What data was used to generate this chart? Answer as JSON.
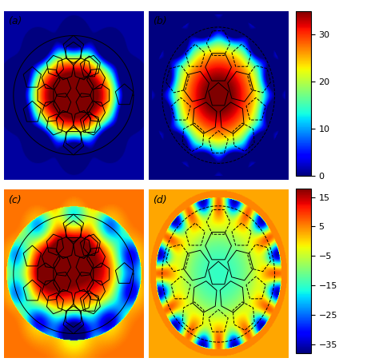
{
  "panel_labels": [
    "(a)",
    "(b)",
    "(c)",
    "(d)"
  ],
  "colorbar1_ticks": [
    0,
    10,
    20,
    30
  ],
  "colorbar2_ticks": [
    -35,
    -25,
    -15,
    -5,
    5,
    15
  ],
  "cmap": "jet",
  "vmin1": 0,
  "vmax1": 35,
  "vmin2": -38,
  "vmax2": 18,
  "background": "#ffffff",
  "figsize": [
    4.74,
    4.53
  ],
  "dpi": 100
}
